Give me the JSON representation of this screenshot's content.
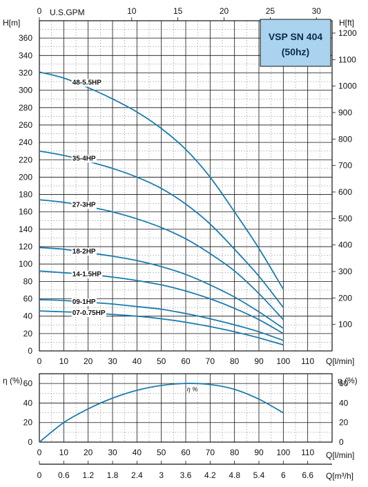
{
  "legend_box": {
    "line1": "VSP SN 404",
    "line2": "(50hz)",
    "fill": "#a9d3ee"
  },
  "colors": {
    "curve": "#1a7bb0",
    "grid_major": "#111111",
    "grid_minor": "#888888"
  },
  "chart_data": [
    {
      "type": "line",
      "title": "",
      "xlabel": "Q[l/min]",
      "ylabel": "H[m]",
      "ylabel_right": "H[ft]",
      "xlabel_top": "U.S.GPM",
      "x_ticks": [
        0,
        10,
        20,
        30,
        40,
        50,
        60,
        70,
        80,
        90,
        100,
        110
      ],
      "x_tick_labels": [
        "0",
        "10",
        "20",
        "30",
        "40",
        "50",
        "60",
        "70",
        "80",
        "90",
        "100",
        "110"
      ],
      "y_ticks": [
        0,
        20,
        40,
        60,
        80,
        100,
        120,
        140,
        160,
        180,
        200,
        220,
        240,
        260,
        280,
        300,
        320,
        340,
        360
      ],
      "y_tick_labels": [
        "0",
        "20",
        "40",
        "60",
        "80",
        "100",
        "120",
        "140",
        "160",
        "180",
        "200",
        "220",
        "240",
        "260",
        "280",
        "300",
        "320",
        "340",
        "360"
      ],
      "right_ticks": [
        100,
        200,
        300,
        400,
        500,
        600,
        700,
        800,
        900,
        1000,
        1100,
        1200
      ],
      "right_tick_labels": [
        "100",
        "200",
        "300",
        "400",
        "500",
        "600",
        "700",
        "800",
        "900",
        "1000",
        "1100",
        "1200"
      ],
      "top_ticks": [
        0,
        10,
        15,
        20,
        25,
        30
      ],
      "top_tick_labels": [
        "0",
        "10",
        "15",
        "20",
        "25",
        "30"
      ],
      "xlim": [
        0,
        120
      ],
      "ylim": [
        0,
        380
      ],
      "grid": true,
      "series": [
        {
          "name": "48-5.5HP",
          "x": [
            0,
            10,
            20,
            30,
            40,
            50,
            60,
            70,
            80,
            90,
            100
          ],
          "y": [
            321,
            314,
            303,
            290,
            275,
            256,
            232,
            200,
            160,
            118,
            71
          ]
        },
        {
          "name": "35-4HP",
          "x": [
            0,
            10,
            20,
            30,
            40,
            50,
            60,
            70,
            80,
            90,
            100
          ],
          "y": [
            230,
            225,
            218,
            210,
            200,
            187,
            169,
            146,
            117,
            86,
            50
          ]
        },
        {
          "name": "27-3HP",
          "x": [
            0,
            10,
            20,
            30,
            40,
            50,
            60,
            70,
            80,
            90,
            100
          ],
          "y": [
            174,
            171,
            166,
            160,
            152,
            142,
            129,
            112,
            92,
            66,
            36
          ]
        },
        {
          "name": "18-2HP",
          "x": [
            0,
            10,
            20,
            30,
            40,
            50,
            60,
            70,
            80,
            90,
            100
          ],
          "y": [
            119,
            117,
            113,
            109,
            104,
            97,
            88,
            76,
            62,
            45,
            26
          ]
        },
        {
          "name": "14-1.5HP",
          "x": [
            0,
            10,
            20,
            30,
            40,
            50,
            60,
            70,
            80,
            90,
            100
          ],
          "y": [
            92,
            90,
            88,
            85,
            81,
            76,
            69,
            60,
            49,
            36,
            20
          ]
        },
        {
          "name": "09-1HP",
          "x": [
            0,
            10,
            20,
            30,
            40,
            50,
            60,
            70,
            80,
            90,
            100
          ],
          "y": [
            59,
            58,
            56,
            54,
            51,
            48,
            43,
            37,
            30,
            22,
            12
          ]
        },
        {
          "name": "07-0.75HP",
          "x": [
            0,
            10,
            20,
            30,
            40,
            50,
            60,
            70,
            80,
            90,
            100
          ],
          "y": [
            46,
            45,
            44,
            42,
            40,
            37,
            33,
            28,
            22,
            15,
            7
          ]
        }
      ]
    },
    {
      "type": "line",
      "title": "",
      "xlabel": "Q[l/min]",
      "ylabel": "η (%)",
      "ylabel_right": "η (%)",
      "x_ticks": [
        0,
        10,
        20,
        30,
        40,
        50,
        60,
        70,
        80,
        90,
        100,
        110
      ],
      "x_tick_labels": [
        "0",
        "10",
        "20",
        "30",
        "40",
        "50",
        "60",
        "70",
        "80",
        "90",
        "100",
        "110"
      ],
      "y_ticks": [
        0,
        20,
        40,
        60
      ],
      "y_tick_labels": [
        "0",
        "20",
        "40",
        "60"
      ],
      "xlim": [
        0,
        120
      ],
      "ylim": [
        0,
        70
      ],
      "grid": true,
      "series": [
        {
          "name": "η %",
          "x": [
            0,
            10,
            20,
            30,
            40,
            50,
            60,
            70,
            80,
            90,
            100
          ],
          "y": [
            0,
            20,
            34,
            45,
            53,
            58,
            60,
            59,
            54,
            44,
            30
          ]
        }
      ]
    },
    {
      "type": "axis",
      "xlabel": "Q[m³/h]",
      "x_ticks": [
        0,
        0.6,
        1.2,
        1.8,
        2.4,
        3,
        3.6,
        4.2,
        4.8,
        5.4,
        6,
        6.6
      ],
      "x_tick_labels": [
        "0",
        "0.6",
        "1.2",
        "1.8",
        "2.4",
        "3",
        "3.6",
        "4.2",
        "4.8",
        "5.4",
        "6",
        "6.6"
      ]
    }
  ]
}
